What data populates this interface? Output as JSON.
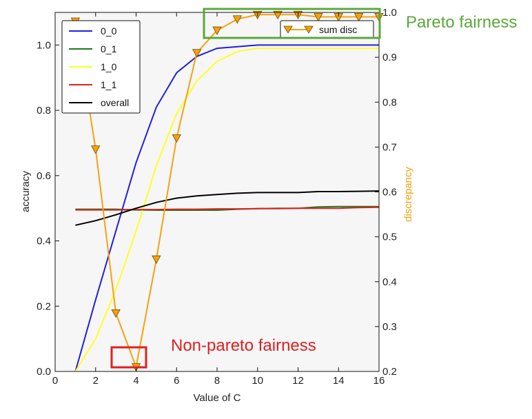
{
  "chart_data": {
    "type": "line",
    "xlabel": "Value of C",
    "ylabel_left": "accuracy",
    "ylabel_right": "discrepancy",
    "xlim": [
      0,
      16
    ],
    "ylim_left": [
      0,
      1.1
    ],
    "ylim_right": [
      0.2,
      1.0
    ],
    "xticks": [
      "0",
      "2",
      "4",
      "6",
      "8",
      "10",
      "12",
      "14",
      "16"
    ],
    "yticks_left": [
      "0.0",
      "0.2",
      "0.4",
      "0.6",
      "0.8",
      "1.0"
    ],
    "yticks_right": [
      "0.2",
      "0.3",
      "0.4",
      "0.5",
      "0.6",
      "0.7",
      "0.8",
      "0.9",
      "1.0"
    ],
    "grid": false,
    "background": "#f6f6f6",
    "legend_left_position": "top-left",
    "legend_right_position": "top-right",
    "x": [
      1,
      2,
      3,
      4,
      5,
      6,
      7,
      8,
      9,
      10,
      11,
      12,
      13,
      14,
      15,
      16
    ],
    "series": [
      {
        "name": "0_0",
        "axis": "left",
        "color": "#1f1fe0",
        "values": [
          0.0,
          0.22,
          0.43,
          0.64,
          0.81,
          0.915,
          0.965,
          0.99,
          0.995,
          1.0,
          1.0,
          1.0,
          1.0,
          1.0,
          1.0,
          1.0
        ]
      },
      {
        "name": "0_1",
        "axis": "left",
        "color": "#1a7a1a",
        "values": [
          0.497,
          0.497,
          0.497,
          0.495,
          0.494,
          0.494,
          0.494,
          0.494,
          0.497,
          0.499,
          0.5,
          0.5,
          0.504,
          0.505,
          0.505,
          0.505
        ]
      },
      {
        "name": "1_0",
        "axis": "left",
        "color": "#ffff22",
        "values": [
          0.0,
          0.1,
          0.25,
          0.43,
          0.63,
          0.79,
          0.89,
          0.95,
          0.98,
          0.99,
          0.99,
          0.99,
          0.99,
          0.99,
          0.99,
          0.99
        ]
      },
      {
        "name": "1_1",
        "axis": "left",
        "color": "#e02020",
        "values": [
          0.495,
          0.495,
          0.495,
          0.496,
          0.496,
          0.497,
          0.497,
          0.498,
          0.498,
          0.499,
          0.499,
          0.5,
          0.5,
          0.5,
          0.502,
          0.503
        ]
      },
      {
        "name": "overall",
        "axis": "left",
        "color": "#000000",
        "values": [
          0.448,
          0.462,
          0.48,
          0.5,
          0.518,
          0.531,
          0.538,
          0.542,
          0.546,
          0.548,
          0.548,
          0.548,
          0.551,
          0.551,
          0.552,
          0.553
        ]
      },
      {
        "name": "sum disc",
        "axis": "right",
        "color": "#f5a10d",
        "marker": "triangle-down",
        "values": [
          0.98,
          0.695,
          0.33,
          0.21,
          0.45,
          0.72,
          0.91,
          0.96,
          0.985,
          0.995,
          0.995,
          0.995,
          0.99,
          0.99,
          0.99,
          0.99
        ]
      }
    ],
    "annotations": [
      {
        "text": "Pareto fairness",
        "color": "#5aa83a"
      },
      {
        "text": "Non-pareto fairness",
        "color": "#e02020"
      }
    ]
  }
}
